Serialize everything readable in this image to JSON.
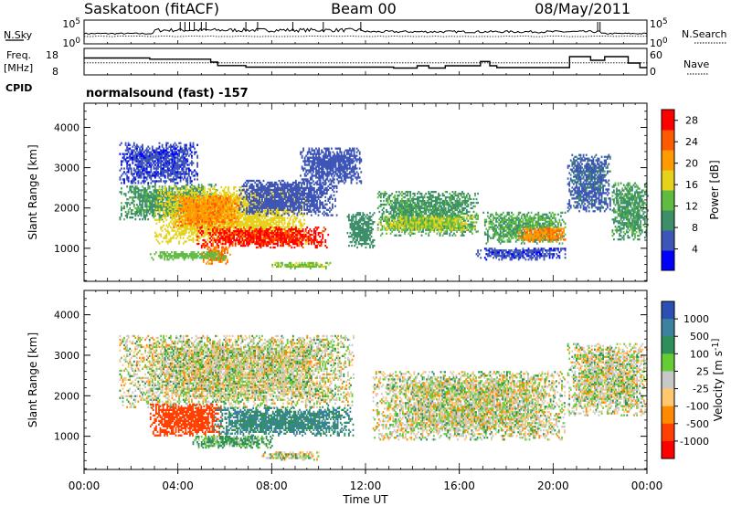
{
  "header": {
    "title": "Saskatoon (fitACF)",
    "beam": "Beam 00",
    "date": "08/May/2011"
  },
  "chart_data": [
    {
      "type": "line",
      "panel": "noise",
      "left_label": "N.Sky",
      "right_label": "N.Search",
      "left_ticks": [
        "10^5",
        "10^0"
      ],
      "right_ticks": [
        "10^5",
        "10^0"
      ]
    },
    {
      "type": "line",
      "panel": "frequency",
      "left_label_lines": [
        "Freq.",
        "[MHz]"
      ],
      "left_ticks": [
        18,
        8
      ],
      "right_label": "Nave",
      "right_ticks": [
        60,
        0
      ],
      "cpid_label": "CPID",
      "cpid_text": "normalsound (fast) -157",
      "series": [
        {
          "name": "Freq",
          "axis": "left",
          "points": [
            [
              0,
              14.6
            ],
            [
              2.8,
              14.6
            ],
            [
              2.8,
              14.1
            ],
            [
              5.4,
              14.1
            ],
            [
              5.4,
              12.8
            ],
            [
              5.7,
              12.8
            ],
            [
              5.7,
              11.3
            ],
            [
              6.9,
              11.3
            ],
            [
              6.9,
              10.6
            ],
            [
              13.2,
              10.6
            ],
            [
              13.2,
              10.2
            ],
            [
              14.2,
              10.2
            ],
            [
              14.2,
              11.2
            ],
            [
              14.7,
              11.2
            ],
            [
              14.7,
              10.2
            ],
            [
              15.4,
              10.2
            ],
            [
              15.4,
              11.2
            ],
            [
              16.9,
              11.2
            ],
            [
              16.9,
              13.1
            ],
            [
              17.3,
              13.1
            ],
            [
              17.3,
              11.2
            ],
            [
              17.6,
              11.2
            ],
            [
              17.6,
              10.4
            ],
            [
              20.7,
              10.4
            ],
            [
              20.7,
              15.2
            ],
            [
              21.6,
              15.2
            ],
            [
              21.6,
              13.6
            ],
            [
              22.2,
              13.6
            ],
            [
              22.2,
              15.2
            ],
            [
              23.2,
              15.2
            ],
            [
              23.2,
              12.4
            ],
            [
              23.7,
              12.4
            ],
            [
              23.7,
              10.4
            ],
            [
              24,
              10.4
            ]
          ]
        },
        {
          "name": "Nave",
          "axis": "right",
          "points": [
            [
              0,
              27
            ],
            [
              24,
              27
            ]
          ]
        }
      ]
    },
    {
      "type": "heatmap",
      "panel": "power",
      "ylabel": "Slant Range [km]",
      "yticks": [
        1000,
        2000,
        3000,
        4000
      ],
      "ylim": [
        180,
        4600
      ],
      "xlim": [
        0,
        24
      ],
      "colorbar_label": "Power [dB]",
      "colorbar_ticks": [
        4,
        8,
        12,
        16,
        20,
        24,
        28
      ],
      "colorbar_range": [
        0,
        30
      ],
      "colorbar_colors": [
        "#0000ff",
        "#3e55b8",
        "#3d8f6a",
        "#5fbc40",
        "#e6d21a",
        "#ff9b00",
        "#ff5a00",
        "#ff0000"
      ],
      "regions": [
        {
          "t": [
            1.5,
            5.8
          ],
          "r": [
            1700,
            2600
          ],
          "value": 11
        },
        {
          "t": [
            1.5,
            4.8
          ],
          "r": [
            2600,
            3600
          ],
          "value": 5
        },
        {
          "t": [
            3.0,
            9.5
          ],
          "r": [
            1100,
            2500
          ],
          "value": 18
        },
        {
          "t": [
            4.8,
            10.4
          ],
          "r": [
            1000,
            1500
          ],
          "value": 29
        },
        {
          "t": [
            3.8,
            6.6
          ],
          "r": [
            1500,
            2300
          ],
          "value": 23
        },
        {
          "t": [
            5.0,
            6.2
          ],
          "r": [
            600,
            1050
          ],
          "value": 24
        },
        {
          "t": [
            6.6,
            10.8
          ],
          "r": [
            1800,
            2700
          ],
          "value": 6
        },
        {
          "t": [
            2.8,
            6.0
          ],
          "r": [
            700,
            900
          ],
          "value": 14
        },
        {
          "t": [
            8.0,
            10.5
          ],
          "r": [
            480,
            640
          ],
          "value": 15
        },
        {
          "t": [
            9.2,
            11.8
          ],
          "r": [
            2600,
            3500
          ],
          "value": 6
        },
        {
          "t": [
            11.2,
            12.4
          ],
          "r": [
            1000,
            1900
          ],
          "value": 10
        },
        {
          "t": [
            12.5,
            16.8
          ],
          "r": [
            1300,
            2400
          ],
          "value": 11
        },
        {
          "t": [
            12.5,
            16.8
          ],
          "r": [
            1400,
            1800
          ],
          "value": 16
        },
        {
          "t": [
            17.0,
            20.5
          ],
          "r": [
            1100,
            1900
          ],
          "value": 12
        },
        {
          "t": [
            18.5,
            20.5
          ],
          "r": [
            1150,
            1500
          ],
          "value": 23
        },
        {
          "t": [
            16.7,
            20.5
          ],
          "r": [
            700,
            1000
          ],
          "value": 5
        },
        {
          "t": [
            20.6,
            22.4
          ],
          "r": [
            1900,
            3300
          ],
          "value": 7
        },
        {
          "t": [
            22.5,
            24.0
          ],
          "r": [
            1200,
            2600
          ],
          "value": 11
        }
      ]
    },
    {
      "type": "heatmap",
      "panel": "velocity",
      "ylabel": "Slant Range [km]",
      "yticks": [
        1000,
        2000,
        3000,
        4000
      ],
      "ylim": [
        180,
        4600
      ],
      "xlim": [
        0,
        24
      ],
      "xticks": [
        "00:00",
        "04:00",
        "08:00",
        "12:00",
        "16:00",
        "20:00",
        "00:00"
      ],
      "xlabel": "Time UT",
      "colorbar_label": "Velocity [m s^-1]",
      "colorbar_ticks": [
        "1000",
        "500",
        "100",
        "25",
        "-25",
        "-100",
        "-500",
        "-1000"
      ],
      "colorbar_colors": [
        "#2c4fb3",
        "#3a82a0",
        "#2f8f5a",
        "#66cc33",
        "#c8c8c8",
        "#ffc870",
        "#ff8a00",
        "#ff4000",
        "#ff0000"
      ],
      "regions": [
        {
          "t": [
            1.5,
            11.5
          ],
          "r": [
            1700,
            3500
          ],
          "value": 0
        },
        {
          "t": [
            2.8,
            5.8
          ],
          "r": [
            1000,
            1800
          ],
          "value": -400
        },
        {
          "t": [
            5.5,
            11.5
          ],
          "r": [
            1000,
            1700
          ],
          "value": 300
        },
        {
          "t": [
            4.5,
            8.0
          ],
          "r": [
            700,
            1000
          ],
          "value": 80
        },
        {
          "t": [
            7.5,
            10.0
          ],
          "r": [
            400,
            600
          ],
          "value": 0
        },
        {
          "t": [
            12.3,
            20.5
          ],
          "r": [
            900,
            2600
          ],
          "value": 0
        },
        {
          "t": [
            20.6,
            24.0
          ],
          "r": [
            1500,
            3300
          ],
          "value": 0
        }
      ]
    }
  ]
}
